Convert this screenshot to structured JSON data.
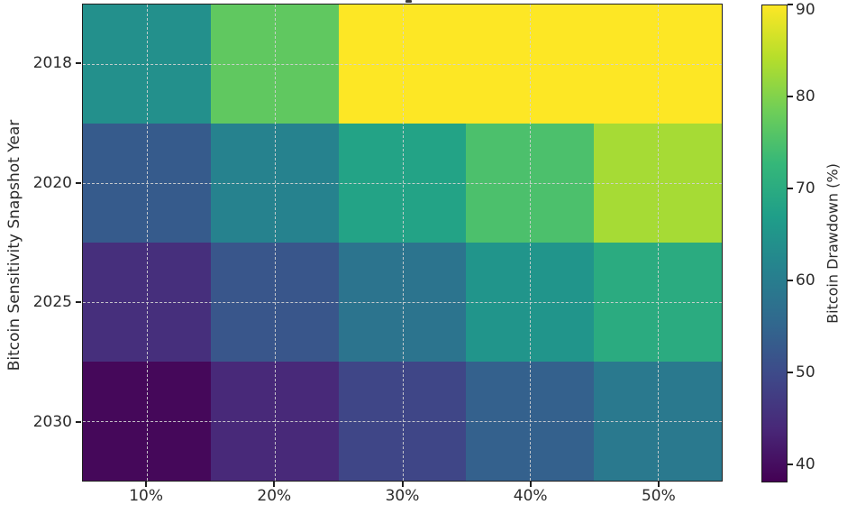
{
  "chart_data": {
    "type": "heatmap",
    "title": "",
    "title_note": "title cropped out of frame at top",
    "xlabel": "",
    "ylabel": "Bitcoin Sensitivity Snapshot Year",
    "x_ticklabels": [
      "10%",
      "20%",
      "30%",
      "40%",
      "50%"
    ],
    "y_ticklabels": [
      "2018",
      "2020",
      "2025",
      "2030"
    ],
    "values": [
      [
        64,
        77,
        90,
        90,
        90
      ],
      [
        53,
        61,
        68,
        75,
        83
      ],
      [
        45,
        52,
        58,
        65,
        70
      ],
      [
        39,
        44,
        49,
        54,
        59
      ]
    ],
    "vmin": 38,
    "vmax": 90,
    "grid": true,
    "gridline_color": "#d3d3d3",
    "axis_text_color": "#2b2b2b",
    "colormap": "viridis",
    "colormap_stops": [
      "#440154",
      "#482878",
      "#3e4989",
      "#31688e",
      "#26828e",
      "#1f9e89",
      "#35b779",
      "#6ece58",
      "#b5de2b",
      "#fde725"
    ],
    "colorbar": {
      "label": "Bitcoin Drawdown (%)",
      "ticks": [
        40,
        50,
        60,
        70,
        80,
        90
      ],
      "position": "right"
    }
  }
}
